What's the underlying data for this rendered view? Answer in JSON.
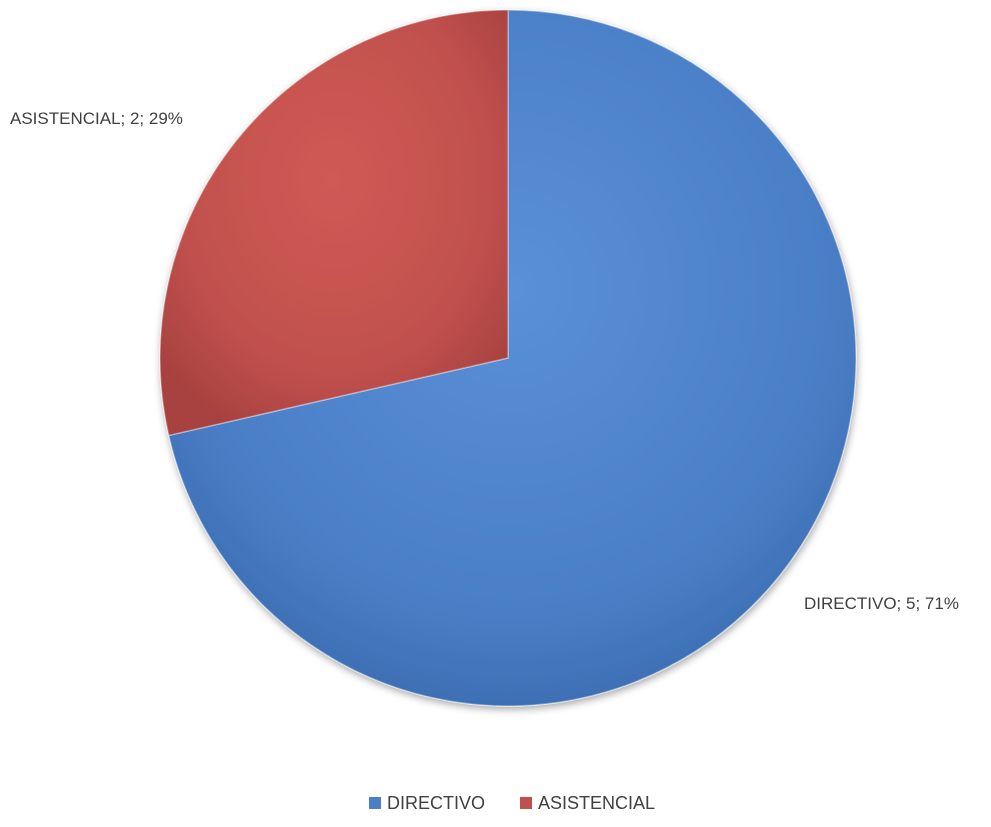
{
  "chart_data": {
    "type": "pie",
    "categories": [
      "DIRECTIVO",
      "ASISTENCIAL"
    ],
    "values": [
      5,
      2
    ],
    "percentages": [
      71,
      29
    ],
    "data_labels": [
      "DIRECTIVO; 5; 71%",
      "ASISTENCIAL; 2; 29%"
    ],
    "colors": [
      "#4a7fc7",
      "#c0504d"
    ],
    "legend": {
      "placement": "bottom",
      "entries": [
        "DIRECTIVO",
        "ASISTENCIAL"
      ]
    },
    "title": ""
  }
}
